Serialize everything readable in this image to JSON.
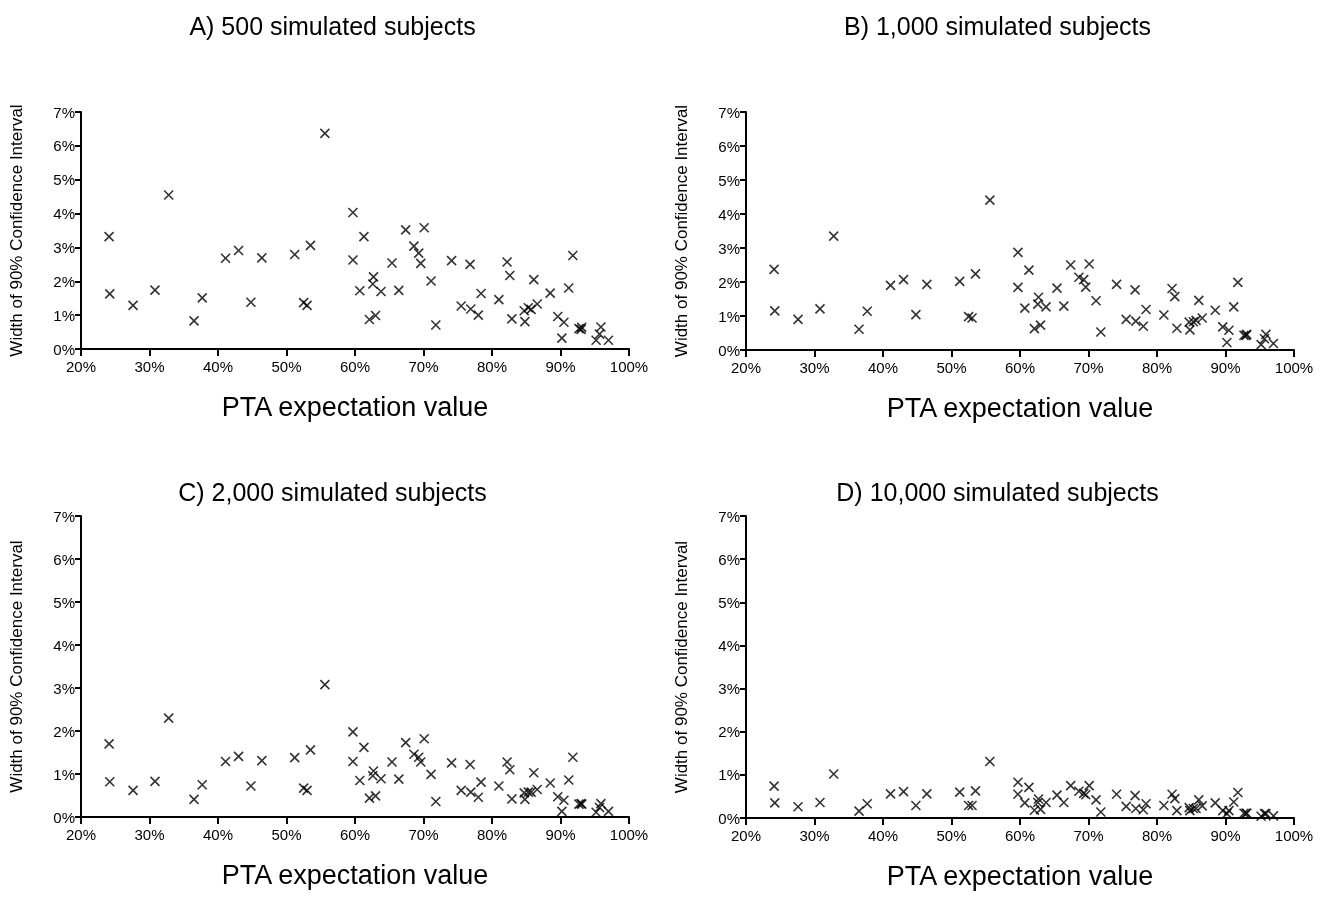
{
  "chart_data": [
    {
      "type": "scatter",
      "title": "A) 500 simulated subjects",
      "xlabel": "PTA expectation value",
      "ylabel": "Width of 90% Confidence Interval",
      "marker": "cross",
      "grid": false,
      "xlim": [
        20,
        100
      ],
      "ylim": [
        0,
        7
      ],
      "xticks": [
        {
          "value": 20,
          "label": "20%"
        },
        {
          "value": 30,
          "label": "30%"
        },
        {
          "value": 40,
          "label": "40%"
        },
        {
          "value": 50,
          "label": "50%"
        },
        {
          "value": 60,
          "label": "60%"
        },
        {
          "value": 70,
          "label": "70%"
        },
        {
          "value": 80,
          "label": "80%"
        },
        {
          "value": 90,
          "label": "90%"
        },
        {
          "value": 100,
          "label": "100%"
        }
      ],
      "yticks": [
        {
          "value": 0,
          "label": "0%"
        },
        {
          "value": 1,
          "label": "1%"
        },
        {
          "value": 2,
          "label": "2%"
        },
        {
          "value": 3,
          "label": "3%"
        },
        {
          "value": 4,
          "label": "4%"
        },
        {
          "value": 5,
          "label": "5%"
        },
        {
          "value": 6,
          "label": "6%"
        },
        {
          "value": 7,
          "label": "7%"
        }
      ],
      "series": [
        {
          "color": "#000000",
          "x": [
            24.1,
            24.2,
            27.6,
            30.8,
            32.8,
            36.5,
            37.7,
            41.1,
            43.0,
            44.8,
            46.4,
            51.2,
            52.5,
            53.0,
            53.5,
            55.6,
            59.7,
            59.7,
            60.7,
            61.3,
            62.1,
            62.6,
            62.7,
            63.0,
            63.8,
            65.4,
            66.4,
            67.4,
            68.6,
            69.3,
            69.6,
            70.1,
            71.1,
            71.8,
            74.1,
            75.5,
            76.8,
            76.9,
            78.0,
            78.4,
            81.0,
            82.2,
            82.6,
            82.9,
            84.7,
            84.8,
            85.3,
            85.7,
            86.1,
            86.6,
            88.5,
            89.6,
            90.2,
            90.5,
            91.2,
            91.8,
            92.7,
            93.0,
            93.1,
            95.2,
            95.7,
            95.9,
            97.0
          ],
          "values": [
            3.32,
            1.63,
            1.29,
            1.74,
            4.55,
            0.83,
            1.51,
            2.68,
            2.91,
            1.38,
            2.69,
            2.79,
            1.37,
            1.29,
            3.06,
            6.37,
            4.03,
            2.63,
            1.72,
            3.32,
            0.87,
            1.92,
            2.13,
            0.99,
            1.7,
            2.54,
            1.73,
            3.52,
            3.04,
            2.83,
            2.53,
            3.58,
            2.01,
            0.71,
            2.61,
            1.27,
            2.5,
            1.18,
            1.0,
            1.64,
            1.46,
            2.57,
            2.17,
            0.89,
            1.13,
            0.81,
            1.22,
            1.17,
            2.05,
            1.33,
            1.65,
            0.96,
            0.32,
            0.79,
            1.8,
            2.76,
            0.6,
            0.58,
            0.64,
            0.26,
            0.44,
            0.65,
            0.26
          ]
        }
      ]
    },
    {
      "type": "scatter",
      "title": "B) 1,000 simulated subjects",
      "xlabel": "PTA expectation value",
      "ylabel": "Width of 90% Confidence Interval",
      "marker": "cross",
      "grid": false,
      "xlim": [
        20,
        100
      ],
      "ylim": [
        0,
        7
      ],
      "xticks": [
        {
          "value": 20,
          "label": "20%"
        },
        {
          "value": 30,
          "label": "30%"
        },
        {
          "value": 40,
          "label": "40%"
        },
        {
          "value": 50,
          "label": "50%"
        },
        {
          "value": 60,
          "label": "60%"
        },
        {
          "value": 70,
          "label": "70%"
        },
        {
          "value": 80,
          "label": "80%"
        },
        {
          "value": 90,
          "label": "90%"
        },
        {
          "value": 100,
          "label": "100%"
        }
      ],
      "yticks": [
        {
          "value": 0,
          "label": "0%"
        },
        {
          "value": 1,
          "label": "1%"
        },
        {
          "value": 2,
          "label": "2%"
        },
        {
          "value": 3,
          "label": "3%"
        },
        {
          "value": 4,
          "label": "4%"
        },
        {
          "value": 5,
          "label": "5%"
        },
        {
          "value": 6,
          "label": "6%"
        },
        {
          "value": 7,
          "label": "7%"
        }
      ],
      "series": [
        {
          "color": "#000000",
          "x": [
            24.1,
            24.2,
            27.6,
            30.8,
            32.8,
            36.5,
            37.7,
            41.1,
            43.0,
            44.8,
            46.4,
            51.2,
            52.5,
            53.0,
            53.5,
            55.6,
            59.7,
            59.7,
            60.7,
            61.3,
            62.1,
            62.6,
            62.7,
            63.0,
            63.8,
            65.4,
            66.4,
            67.4,
            68.6,
            69.3,
            69.6,
            70.1,
            71.1,
            71.8,
            74.1,
            75.5,
            76.8,
            76.9,
            78.0,
            78.4,
            81.0,
            82.2,
            82.6,
            82.9,
            84.7,
            84.8,
            85.3,
            85.7,
            86.1,
            86.6,
            88.5,
            89.6,
            90.2,
            90.5,
            91.2,
            91.8,
            92.7,
            93.0,
            93.1,
            95.2,
            95.7,
            95.9,
            97.0
          ],
          "values": [
            2.37,
            1.15,
            0.9,
            1.21,
            3.35,
            0.61,
            1.14,
            1.9,
            2.07,
            1.04,
            1.93,
            2.02,
            0.98,
            0.94,
            2.24,
            4.41,
            2.87,
            1.84,
            1.23,
            2.35,
            0.63,
            1.35,
            1.55,
            0.73,
            1.27,
            1.82,
            1.29,
            2.5,
            2.14,
            2.07,
            1.85,
            2.53,
            1.45,
            0.53,
            1.93,
            0.9,
            1.77,
            0.85,
            0.7,
            1.19,
            1.03,
            1.81,
            1.57,
            0.64,
            0.82,
            0.59,
            0.83,
            0.87,
            1.46,
            0.94,
            1.17,
            0.68,
            0.22,
            0.58,
            1.27,
            1.99,
            0.43,
            0.43,
            0.46,
            0.16,
            0.33,
            0.46,
            0.19
          ]
        }
      ]
    },
    {
      "type": "scatter",
      "title": "C) 2,000 simulated subjects",
      "xlabel": "PTA expectation value",
      "ylabel": "Width of 90% Confidence Interval",
      "marker": "cross",
      "grid": false,
      "xlim": [
        20,
        100
      ],
      "ylim": [
        0,
        7
      ],
      "xticks": [
        {
          "value": 20,
          "label": "20%"
        },
        {
          "value": 30,
          "label": "30%"
        },
        {
          "value": 40,
          "label": "40%"
        },
        {
          "value": 50,
          "label": "50%"
        },
        {
          "value": 60,
          "label": "60%"
        },
        {
          "value": 70,
          "label": "70%"
        },
        {
          "value": 80,
          "label": "80%"
        },
        {
          "value": 90,
          "label": "90%"
        },
        {
          "value": 100,
          "label": "100%"
        }
      ],
      "yticks": [
        {
          "value": 0,
          "label": "0%"
        },
        {
          "value": 1,
          "label": "1%"
        },
        {
          "value": 2,
          "label": "2%"
        },
        {
          "value": 3,
          "label": "3%"
        },
        {
          "value": 4,
          "label": "4%"
        },
        {
          "value": 5,
          "label": "5%"
        },
        {
          "value": 6,
          "label": "6%"
        },
        {
          "value": 7,
          "label": "7%"
        }
      ],
      "series": [
        {
          "color": "#000000",
          "x": [
            24.1,
            24.2,
            27.6,
            30.8,
            32.8,
            36.5,
            37.7,
            41.1,
            43.0,
            44.8,
            46.4,
            51.2,
            52.5,
            53.0,
            53.5,
            55.6,
            59.7,
            59.7,
            60.7,
            61.3,
            62.1,
            62.6,
            62.7,
            63.0,
            63.8,
            65.4,
            66.4,
            67.4,
            68.6,
            69.3,
            69.6,
            70.1,
            71.1,
            71.8,
            74.1,
            75.5,
            76.8,
            76.9,
            78.0,
            78.4,
            81.0,
            82.2,
            82.6,
            82.9,
            84.7,
            84.8,
            85.3,
            85.7,
            86.1,
            86.6,
            88.5,
            89.6,
            90.2,
            90.5,
            91.2,
            91.8,
            92.7,
            93.0,
            93.1,
            95.2,
            95.7,
            95.9,
            97.0
          ],
          "values": [
            1.7,
            0.82,
            0.62,
            0.83,
            2.3,
            0.41,
            0.75,
            1.29,
            1.41,
            0.72,
            1.31,
            1.38,
            0.67,
            0.62,
            1.56,
            3.08,
            1.98,
            1.29,
            0.85,
            1.62,
            0.44,
            0.96,
            1.07,
            0.49,
            0.89,
            1.28,
            0.88,
            1.73,
            1.46,
            1.39,
            1.28,
            1.82,
            0.99,
            0.36,
            1.26,
            0.62,
            1.22,
            0.58,
            0.46,
            0.81,
            0.72,
            1.28,
            1.1,
            0.42,
            0.56,
            0.41,
            0.58,
            0.58,
            1.03,
            0.64,
            0.79,
            0.47,
            0.13,
            0.39,
            0.86,
            1.39,
            0.3,
            0.31,
            0.3,
            0.11,
            0.22,
            0.31,
            0.13
          ]
        }
      ]
    },
    {
      "type": "scatter",
      "title": "D) 10,000 simulated subjects",
      "xlabel": "PTA expectation value",
      "ylabel": "Width of 90% Confidence Interval",
      "marker": "cross",
      "grid": false,
      "xlim": [
        20,
        100
      ],
      "ylim": [
        0,
        7
      ],
      "xticks": [
        {
          "value": 20,
          "label": "20%"
        },
        {
          "value": 30,
          "label": "30%"
        },
        {
          "value": 40,
          "label": "40%"
        },
        {
          "value": 50,
          "label": "50%"
        },
        {
          "value": 60,
          "label": "60%"
        },
        {
          "value": 70,
          "label": "70%"
        },
        {
          "value": 80,
          "label": "80%"
        },
        {
          "value": 90,
          "label": "90%"
        },
        {
          "value": 100,
          "label": "100%"
        }
      ],
      "yticks": [
        {
          "value": 0,
          "label": "0%"
        },
        {
          "value": 1,
          "label": "1%"
        },
        {
          "value": 2,
          "label": "2%"
        },
        {
          "value": 3,
          "label": "3%"
        },
        {
          "value": 4,
          "label": "4%"
        },
        {
          "value": 5,
          "label": "5%"
        },
        {
          "value": 6,
          "label": "6%"
        },
        {
          "value": 7,
          "label": "7%"
        }
      ],
      "series": [
        {
          "color": "#000000",
          "x": [
            24.1,
            24.2,
            27.6,
            30.8,
            32.8,
            36.5,
            37.7,
            41.1,
            43.0,
            44.8,
            46.4,
            51.2,
            52.5,
            53.0,
            53.5,
            55.6,
            59.7,
            59.7,
            60.7,
            61.3,
            62.1,
            62.6,
            62.7,
            63.0,
            63.8,
            65.4,
            66.4,
            67.4,
            68.6,
            69.3,
            69.6,
            70.1,
            71.1,
            71.8,
            74.1,
            75.5,
            76.8,
            76.9,
            78.0,
            78.4,
            81.0,
            82.2,
            82.6,
            82.9,
            84.7,
            84.8,
            85.3,
            85.7,
            86.1,
            86.6,
            88.5,
            89.6,
            90.2,
            90.5,
            91.2,
            91.8,
            92.7,
            93.0,
            93.1,
            95.2,
            95.7,
            95.9,
            97.0
          ],
          "values": [
            0.74,
            0.35,
            0.26,
            0.36,
            1.02,
            0.16,
            0.33,
            0.56,
            0.61,
            0.29,
            0.56,
            0.6,
            0.29,
            0.29,
            0.63,
            1.31,
            0.83,
            0.55,
            0.35,
            0.71,
            0.18,
            0.36,
            0.44,
            0.2,
            0.36,
            0.53,
            0.36,
            0.75,
            0.62,
            0.57,
            0.54,
            0.75,
            0.42,
            0.14,
            0.55,
            0.27,
            0.52,
            0.22,
            0.19,
            0.33,
            0.29,
            0.55,
            0.45,
            0.17,
            0.24,
            0.17,
            0.22,
            0.22,
            0.42,
            0.28,
            0.35,
            0.17,
            0.1,
            0.17,
            0.37,
            0.59,
            0.11,
            0.11,
            0.11,
            0.04,
            0.1,
            0.1,
            0.05
          ]
        }
      ]
    }
  ]
}
